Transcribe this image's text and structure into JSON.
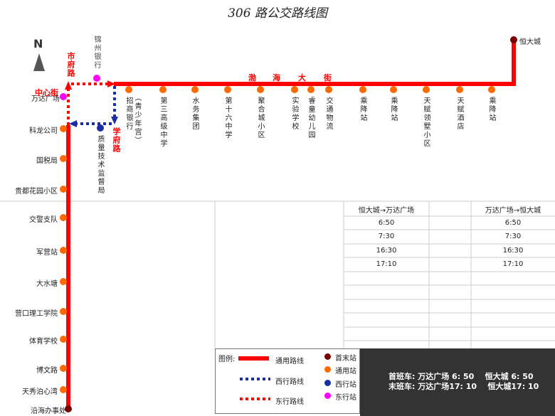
{
  "title": "306 路公交路线图",
  "compass": "N",
  "roads": {
    "shifu": "市府路",
    "zhongxin": "中心街",
    "xuefu": "学府路",
    "bohai": [
      "渤",
      "海",
      "大",
      "街"
    ]
  },
  "colors": {
    "main": "#ff0000",
    "west": "#1a2ea8",
    "east": "#ff0000",
    "terminal": "#7a0000",
    "common_stop": "#ff6a00",
    "west_stop": "#1a2ea8",
    "east_stop": "#ff00ff"
  },
  "terminals": {
    "north_east": "恒大城",
    "south": "沿海办事处"
  },
  "east_stops": [
    "锦州银行",
    "万达广场"
  ],
  "west_stops": [
    "质量技术监督局"
  ],
  "top_stops": [
    {
      "name": "招商银行",
      "note": "（青少年宫）"
    },
    {
      "name": "第三高级中学"
    },
    {
      "name": "水务集团"
    },
    {
      "name": "第十六中学"
    },
    {
      "name": "聚合城小区"
    },
    {
      "name": "实验学校"
    },
    {
      "name": "睿童幼儿园"
    },
    {
      "name": "交通物流"
    },
    {
      "name": "乘降站"
    },
    {
      "name": "乘降站"
    },
    {
      "name": "天赋领墅小区"
    },
    {
      "name": "天赋酒店"
    },
    {
      "name": "乘降站"
    }
  ],
  "left_stops": [
    "科龙公司",
    "国税局",
    "贵都花园小区",
    "交警支队",
    "军营站",
    "大水塘",
    "营口理工学院",
    "体育学校",
    "博文路",
    "天秀泊心湾"
  ],
  "timetable": {
    "headers": [
      "恒大城→万达广场",
      "万达广场→恒大城"
    ],
    "rows": [
      [
        "6:50",
        "6:50"
      ],
      [
        "7:30",
        "7:30"
      ],
      [
        "16:30",
        "16:30"
      ],
      [
        "17:10",
        "17:10"
      ]
    ]
  },
  "legend": {
    "title": "图例:",
    "lines": [
      "通用路线",
      "西行路线",
      "东行路线"
    ],
    "stops": [
      "首末站",
      "通用站",
      "西行站",
      "东行站"
    ]
  },
  "summary": {
    "first": "首班车: 万达广场 6: 50    恒大城 6: 50",
    "last": "末班车: 万达广场17: 10    恒大城17: 10"
  }
}
